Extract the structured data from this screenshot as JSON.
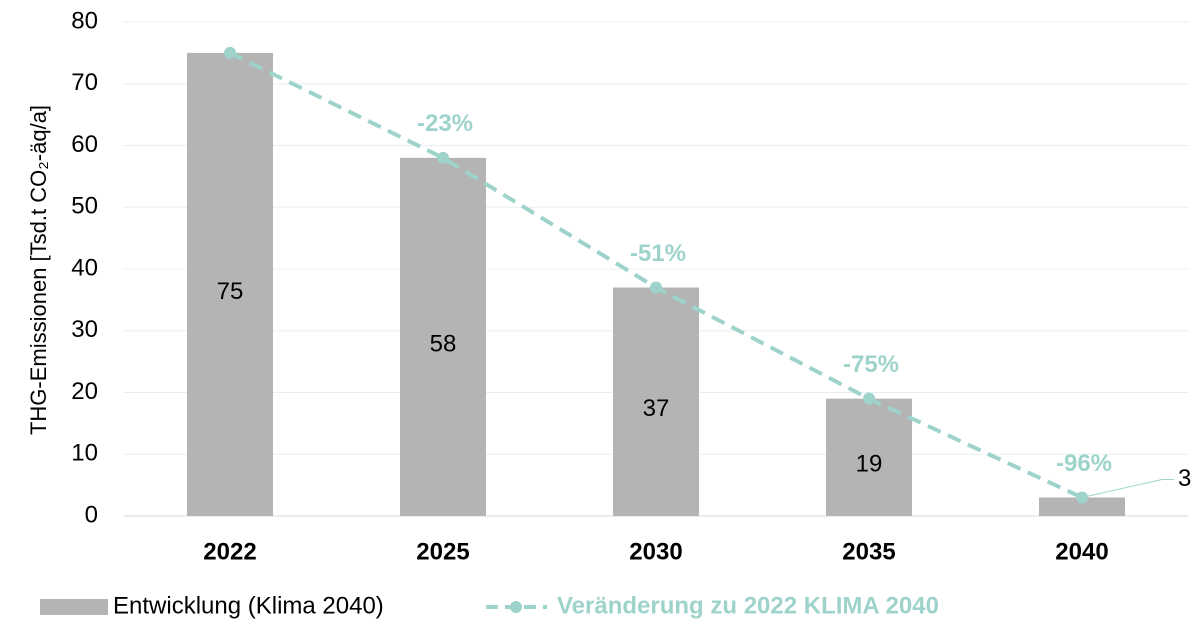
{
  "chart_data": {
    "type": "bar_line",
    "y_label": "THG-Emissionen [Tsd.t CO₂-äq/a]",
    "categories": [
      "2022",
      "2025",
      "2030",
      "2035",
      "2040"
    ],
    "series": [
      {
        "name": "Entwicklung (Klima 2040)",
        "type": "bar",
        "color": "#b4b4b4",
        "values": [
          75,
          58,
          37,
          19,
          3
        ]
      },
      {
        "name": "Veränderung zu 2022 KLIMA 2040",
        "type": "line",
        "color": "#9ed3cc",
        "values": [
          75,
          58,
          37,
          19,
          3
        ],
        "change_labels": [
          null,
          "-23%",
          "-51%",
          "-75%",
          "-96%"
        ]
      }
    ],
    "ylim": [
      0,
      80
    ],
    "yticks": [
      0,
      10,
      20,
      30,
      40,
      50,
      60,
      70,
      80
    ],
    "grid": true,
    "legend": "bottom"
  }
}
